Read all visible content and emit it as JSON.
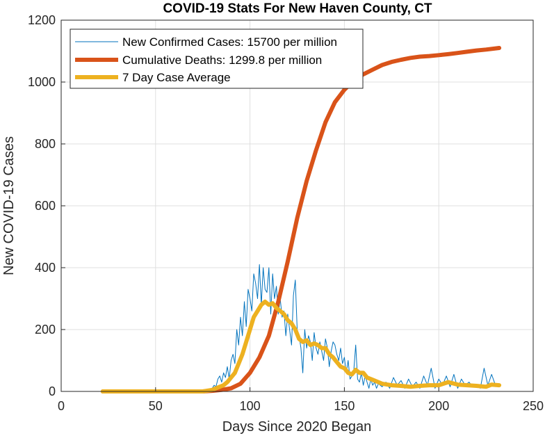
{
  "chart_data": {
    "type": "line",
    "title": "COVID-19 Stats For New Haven County, CT",
    "xlabel": "Days Since 2020 Began",
    "ylabel": "New COVID-19 Cases",
    "xlim": [
      0,
      250
    ],
    "ylim": [
      0,
      1200
    ],
    "xticks": [
      0,
      50,
      100,
      150,
      200,
      250
    ],
    "yticks": [
      0,
      200,
      400,
      600,
      800,
      1000,
      1200
    ],
    "grid": true,
    "legend_position": "top-left",
    "series": [
      {
        "name": "New Confirmed Cases: 15700 per million",
        "color": "#0072BD",
        "x": [
          22,
          30,
          40,
          50,
          60,
          70,
          75,
          77,
          79,
          80,
          81,
          82,
          83,
          84,
          85,
          86,
          87,
          88,
          89,
          90,
          91,
          92,
          93,
          94,
          95,
          96,
          97,
          98,
          99,
          100,
          101,
          102,
          103,
          104,
          105,
          106,
          107,
          108,
          109,
          110,
          111,
          112,
          113,
          114,
          115,
          116,
          117,
          118,
          119,
          120,
          121,
          122,
          123,
          124,
          125,
          126,
          127,
          128,
          129,
          130,
          131,
          132,
          133,
          134,
          135,
          136,
          137,
          138,
          139,
          140,
          141,
          142,
          143,
          144,
          145,
          146,
          147,
          148,
          149,
          150,
          151,
          152,
          153,
          154,
          155,
          156,
          157,
          158,
          159,
          160,
          161,
          162,
          163,
          164,
          165,
          166,
          167,
          168,
          169,
          170,
          172,
          174,
          176,
          178,
          180,
          182,
          184,
          186,
          188,
          190,
          192,
          194,
          196,
          198,
          200,
          202,
          204,
          206,
          208,
          210,
          212,
          214,
          216,
          218,
          220,
          222,
          224,
          226,
          228,
          230,
          232
        ],
        "y": [
          0,
          0,
          0,
          0,
          0,
          0,
          0,
          5,
          3,
          10,
          20,
          15,
          40,
          50,
          30,
          60,
          45,
          80,
          40,
          100,
          120,
          90,
          200,
          150,
          240,
          180,
          290,
          210,
          330,
          300,
          260,
          380,
          350,
          300,
          410,
          280,
          400,
          330,
          320,
          400,
          250,
          380,
          300,
          340,
          250,
          300,
          240,
          260,
          180,
          250,
          200,
          150,
          310,
          360,
          200,
          180,
          140,
          60,
          200,
          140,
          180,
          160,
          100,
          190,
          140,
          120,
          160,
          130,
          100,
          170,
          140,
          80,
          130,
          160,
          150,
          120,
          100,
          140,
          90,
          110,
          60,
          100,
          40,
          50,
          70,
          150,
          40,
          30,
          60,
          20,
          50,
          30,
          10,
          40,
          20,
          30,
          10,
          25,
          20,
          15,
          30,
          10,
          45,
          20,
          35,
          10,
          40,
          15,
          30,
          10,
          50,
          20,
          75,
          10,
          40,
          20,
          50,
          15,
          55,
          10,
          40,
          20,
          30,
          15,
          20,
          10,
          75,
          20,
          55,
          20,
          25
        ]
      },
      {
        "name": "Cumulative Deaths: 1299.8 per million",
        "color": "#D95319",
        "x": [
          22,
          50,
          75,
          80,
          85,
          90,
          95,
          100,
          105,
          110,
          115,
          120,
          125,
          130,
          135,
          140,
          145,
          150,
          155,
          160,
          165,
          170,
          175,
          180,
          185,
          190,
          195,
          200,
          205,
          210,
          215,
          220,
          225,
          232
        ],
        "y": [
          0,
          0,
          0,
          2,
          5,
          10,
          25,
          60,
          110,
          180,
          290,
          420,
          560,
          680,
          780,
          870,
          935,
          975,
          1005,
          1025,
          1040,
          1055,
          1065,
          1072,
          1078,
          1082,
          1084,
          1087,
          1090,
          1094,
          1098,
          1102,
          1105,
          1110
        ]
      },
      {
        "name": "7 Day Case Average",
        "color": "#EDB120",
        "x": [
          22,
          50,
          75,
          80,
          82,
          84,
          86,
          88,
          90,
          92,
          94,
          96,
          98,
          100,
          102,
          104,
          106,
          108,
          110,
          112,
          114,
          116,
          118,
          120,
          122,
          124,
          126,
          128,
          130,
          132,
          134,
          136,
          138,
          140,
          142,
          144,
          146,
          148,
          150,
          152,
          154,
          156,
          158,
          160,
          162,
          164,
          166,
          168,
          170,
          175,
          180,
          185,
          190,
          195,
          200,
          205,
          210,
          215,
          220,
          225,
          228,
          232
        ],
        "y": [
          0,
          0,
          0,
          5,
          10,
          15,
          20,
          30,
          45,
          60,
          90,
          120,
          160,
          200,
          240,
          260,
          280,
          290,
          280,
          285,
          270,
          260,
          250,
          230,
          220,
          200,
          170,
          160,
          165,
          150,
          155,
          150,
          140,
          140,
          120,
          110,
          95,
          80,
          75,
          60,
          55,
          70,
          60,
          60,
          45,
          40,
          35,
          30,
          25,
          20,
          18,
          15,
          18,
          20,
          20,
          30,
          22,
          20,
          18,
          15,
          22,
          20
        ]
      }
    ]
  }
}
